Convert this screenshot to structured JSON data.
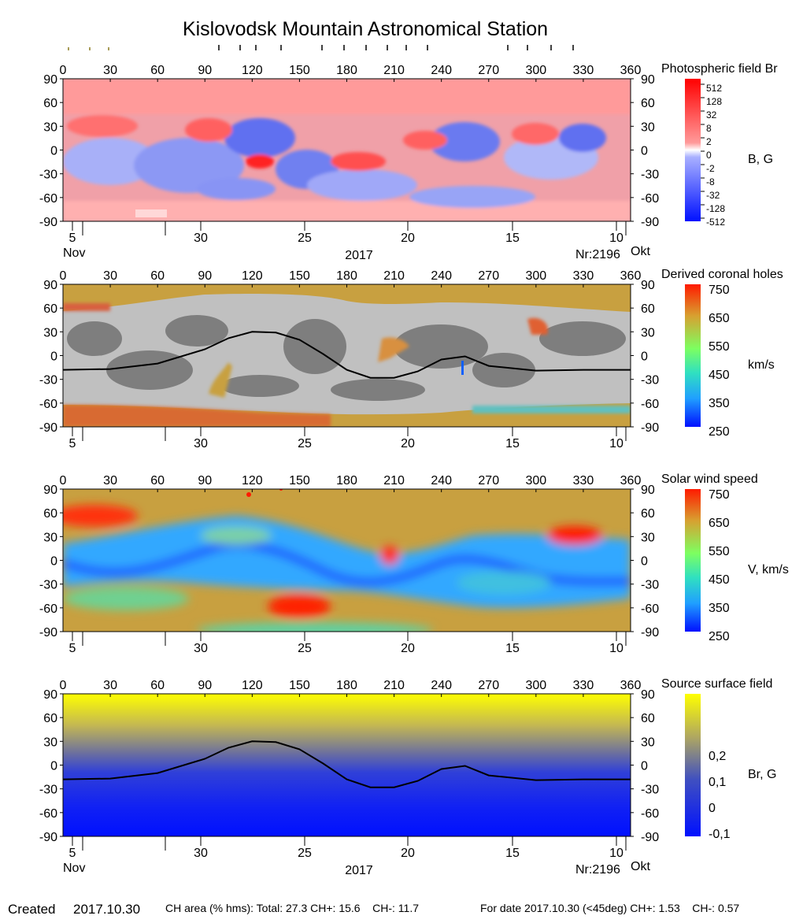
{
  "title": "Kislovodsk Mountain Astronomical Station",
  "lon_ticks": [
    "0",
    "30",
    "60",
    "90",
    "120",
    "150",
    "180",
    "210",
    "240",
    "270",
    "300",
    "330",
    "360"
  ],
  "lat_ticks": [
    "90",
    "60",
    "30",
    "0",
    "-30",
    "-60",
    "-90"
  ],
  "date_ticks": [
    "5",
    "30",
    "25",
    "20",
    "15",
    "10"
  ],
  "year": "2017",
  "month_left": "Nov",
  "month_right": "Okt",
  "rotation": "Nr:2196",
  "panels": [
    {
      "id": "photosphere",
      "colorbar_title": "Photospheric field Br",
      "unit_label": "B, G",
      "scale_labels": [
        "512",
        "128",
        "32",
        "8",
        "2",
        "0",
        "-2",
        "-8",
        "-32",
        "-128",
        "-512"
      ],
      "show_date_labels": true
    },
    {
      "id": "coronal-holes",
      "colorbar_title": "Derived coronal holes",
      "unit_label": "km/s",
      "scale_labels": [
        "750",
        "650",
        "550",
        "450",
        "350",
        "250"
      ],
      "show_date_labels": false
    },
    {
      "id": "solar-wind",
      "colorbar_title": "Solar wind speed",
      "unit_label": "V, km/s",
      "scale_labels": [
        "750",
        "650",
        "550",
        "450",
        "350",
        "250"
      ],
      "show_date_labels": false
    },
    {
      "id": "source-surface",
      "colorbar_title": "Source surface field",
      "unit_label": "Br, G",
      "scale_labels": [
        "0,2",
        "0,1",
        "0",
        "-0,1"
      ],
      "show_date_labels": true
    }
  ],
  "footer": {
    "created_label": "Created",
    "created_date": "2017.10.30",
    "ch_area": "CH area (% hms): Total: 27.3 CH+: 15.6    CH-: 11.7",
    "for_date": "For date 2017.10.30 (<45deg) CH+: 1.53    CH-: 0.57"
  },
  "chart_data": [
    {
      "type": "heatmap",
      "title": "Photospheric field Br",
      "x_range": [
        0,
        360
      ],
      "y_range": [
        -90,
        90
      ],
      "colorbar_unit": "B, G",
      "colorbar_levels": [
        512,
        128,
        32,
        8,
        2,
        0,
        -2,
        -8,
        -32,
        -128,
        -512
      ],
      "colors": {
        "positive": "#ff2020",
        "negative": "#2030ff"
      }
    },
    {
      "type": "heatmap",
      "title": "Derived coronal holes",
      "x_range": [
        0,
        360
      ],
      "y_range": [
        -90,
        90
      ],
      "colorbar_unit": "km/s",
      "colorbar_range": [
        250,
        750
      ],
      "neutral_line": {
        "lon": [
          0,
          30,
          60,
          90,
          105,
          120,
          135,
          150,
          165,
          180,
          195,
          210,
          225,
          240,
          255,
          270,
          300,
          330,
          360
        ],
        "lat": [
          -18,
          -17,
          -10,
          8,
          22,
          30,
          29,
          20,
          2,
          -18,
          -28,
          -28,
          -20,
          -5,
          -1,
          -13,
          -19,
          -18,
          -18
        ]
      }
    },
    {
      "type": "heatmap",
      "title": "Solar wind speed",
      "x_range": [
        0,
        360
      ],
      "y_range": [
        -90,
        90
      ],
      "colorbar_unit": "V, km/s",
      "colorbar_range": [
        250,
        750
      ]
    },
    {
      "type": "heatmap",
      "title": "Source surface field",
      "x_range": [
        0,
        360
      ],
      "y_range": [
        -90,
        90
      ],
      "colorbar_unit": "Br, G",
      "colorbar_levels": [
        0.2,
        0.1,
        0,
        -0.1
      ],
      "neutral_line": {
        "lon": [
          0,
          30,
          60,
          90,
          105,
          120,
          135,
          150,
          165,
          180,
          195,
          210,
          225,
          240,
          255,
          270,
          300,
          330,
          360
        ],
        "lat": [
          -18,
          -17,
          -10,
          8,
          22,
          30,
          29,
          20,
          2,
          -18,
          -28,
          -28,
          -20,
          -5,
          -1,
          -13,
          -19,
          -18,
          -18
        ]
      }
    }
  ]
}
